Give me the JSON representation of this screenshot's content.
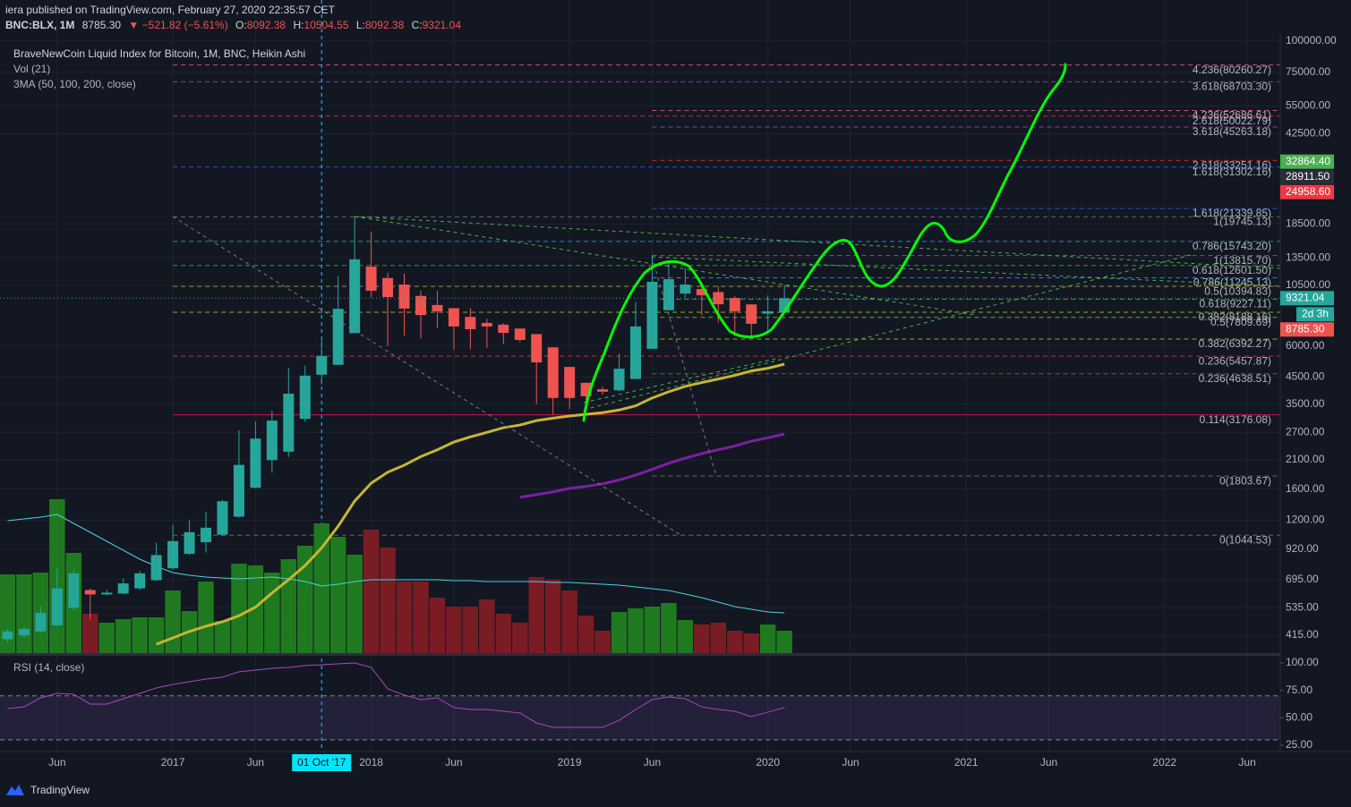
{
  "header": {
    "publisher": "iera published on TradingView.com, February 27, 2020 22:35:57 CET",
    "symbol": "BNC:BLX, 1M",
    "last": "8785.30",
    "change": "▼ −521.82 (−5.61%)",
    "ohlc": [
      {
        "label": "O:",
        "value": "8092.38"
      },
      {
        "label": "H:",
        "value": "10504.55"
      },
      {
        "label": "L:",
        "value": "8092.38"
      },
      {
        "label": "C:",
        "value": "9321.04"
      }
    ]
  },
  "legend": [
    "BraveNewCoin Liquid Index for Bitcoin, 1M, BNC, Heikin Ashi",
    "Vol (21)",
    "3MA (50, 100, 200, close)"
  ],
  "brand": "TradingView",
  "chart_data": {
    "type": "candlestick",
    "log_scale": true,
    "grid": true,
    "up_color": "#26a69a",
    "down_color": "#ef5350",
    "x": [
      "2016-03",
      "2016-04",
      "2016-05",
      "2016-06",
      "2016-07",
      "2016-08",
      "2016-09",
      "2016-10",
      "2016-11",
      "2016-12",
      "2017-01",
      "2017-02",
      "2017-03",
      "2017-04",
      "2017-05",
      "2017-06",
      "2017-07",
      "2017-08",
      "2017-09",
      "2017-10",
      "2017-11",
      "2017-12",
      "2018-01",
      "2018-02",
      "2018-03",
      "2018-04",
      "2018-05",
      "2018-06",
      "2018-07",
      "2018-08",
      "2018-09",
      "2018-10",
      "2018-11",
      "2018-12",
      "2019-01",
      "2019-02",
      "2019-03",
      "2019-04",
      "2019-05",
      "2019-06",
      "2019-07",
      "2019-08",
      "2019-09",
      "2019-10",
      "2019-11",
      "2019-12",
      "2020-01",
      "2020-02"
    ],
    "open": [
      400,
      415,
      430,
      455,
      535,
      630,
      605,
      610,
      640,
      690,
      770,
      880,
      980,
      1050,
      1240,
      1620,
      2090,
      2260,
      3060,
      4600,
      5040,
      6750,
      12470,
      11230,
      10570,
      9520,
      8750,
      8500,
      7840,
      7420,
      7300,
      7040,
      6690,
      5920,
      4940,
      4270,
      4020,
      3980,
      4420,
      5840,
      8340,
      9720,
      10140,
      9860,
      9340,
      8800,
      8080,
      8180
    ],
    "high": [
      440,
      450,
      540,
      770,
      760,
      640,
      630,
      700,
      750,
      975,
      1150,
      1200,
      1300,
      1450,
      2750,
      2980,
      3300,
      4900,
      5000,
      6400,
      11400,
      19745.13,
      17200,
      11800,
      11700,
      9990,
      9990,
      8500,
      8500,
      7700,
      7400,
      7040,
      6690,
      5920,
      4940,
      4270,
      4120,
      5600,
      9000,
      13880,
      13150,
      12300,
      10800,
      10400,
      9500,
      8800,
      9570,
      10504.55
    ],
    "low": [
      390,
      405,
      425,
      450,
      520,
      480,
      600,
      605,
      630,
      685,
      760,
      870,
      890,
      1040,
      1230,
      1610,
      1860,
      2150,
      2970,
      4200,
      5040,
      6750,
      9400,
      6000,
      6600,
      6430,
      7060,
      5780,
      5820,
      5880,
      6100,
      6200,
      3500,
      3180,
      3350,
      3390,
      3830,
      3950,
      4420,
      5840,
      8340,
      9350,
      7960,
      7440,
      6560,
      6440,
      6870,
      8092.38
    ],
    "close": [
      430,
      440,
      510,
      640,
      735,
      605,
      615,
      670,
      735,
      870,
      990,
      1075,
      1120,
      1430,
      2000,
      2550,
      3010,
      3860,
      4560,
      5470,
      8450,
      13335,
      9980,
      9420,
      8470,
      7980,
      8260,
      7180,
      7000,
      7180,
      6770,
      6340,
      5150,
      3710,
      3710,
      3770,
      3930,
      4860,
      7180,
      10840,
      11110,
      10570,
      9570,
      8810,
      8260,
      7360,
      8260,
      9321.04
    ],
    "ylim": [
      352,
      106800
    ],
    "yticks": [
      {
        "value": 100000,
        "label": "100000.00"
      },
      {
        "value": 75000,
        "label": "75000.00"
      },
      {
        "value": 55000,
        "label": "55000.00"
      },
      {
        "value": 42500,
        "label": "42500.00"
      },
      {
        "value": 18500,
        "label": "18500.00"
      },
      {
        "value": 13500,
        "label": "13500.00"
      },
      {
        "value": 10500,
        "label": "10500.00"
      },
      {
        "value": 6000,
        "label": "6000.00"
      },
      {
        "value": 4500,
        "label": "4500.00"
      },
      {
        "value": 3500,
        "label": "3500.00"
      },
      {
        "value": 2700,
        "label": "2700.00"
      },
      {
        "value": 2100,
        "label": "2100.00"
      },
      {
        "value": 1600,
        "label": "1600.00"
      },
      {
        "value": 1200,
        "label": "1200.00"
      },
      {
        "value": 920,
        "label": "920.00"
      },
      {
        "value": 695,
        "label": "695.00"
      },
      {
        "value": 535,
        "label": "535.00"
      },
      {
        "value": 415,
        "label": "415.00"
      }
    ],
    "xlim": [
      "2016-02",
      "2022-08"
    ],
    "xticks": [
      {
        "value": "2016-06",
        "label": "Jun"
      },
      {
        "value": "2017-01",
        "label": "2017"
      },
      {
        "value": "2017-06",
        "label": "Jun"
      },
      {
        "value": "2018-01",
        "label": "2018"
      },
      {
        "value": "2018-06",
        "label": "Jun"
      },
      {
        "value": "2019-01",
        "label": "2019"
      },
      {
        "value": "2019-06",
        "label": "Jun"
      },
      {
        "value": "2020-01",
        "label": "2020"
      },
      {
        "value": "2020-06",
        "label": "Jun"
      },
      {
        "value": "2021-01",
        "label": "2021"
      },
      {
        "value": "2021-06",
        "label": "Jun"
      },
      {
        "value": "2022-01",
        "label": "2022"
      },
      {
        "value": "2022-06",
        "label": "Jun"
      }
    ],
    "crosshair": {
      "value": "2017-10",
      "label": "01 Oct '17",
      "color": "#00e5ff"
    },
    "moving_averages": [
      {
        "color": "#c5b632",
        "values": [
          null,
          null,
          null,
          null,
          null,
          null,
          null,
          null,
          null,
          382,
          405,
          430,
          451,
          470,
          497,
          538,
          613,
          693,
          790,
          930,
          1136,
          1432,
          1690,
          1870,
          1995,
          2160,
          2300,
          2470,
          2590,
          2700,
          2820,
          2890,
          3010,
          3080,
          3140,
          3190,
          3240,
          3320,
          3450,
          3710,
          3930,
          4130,
          4280,
          4420,
          4570,
          4760,
          4880,
          5070
        ]
      },
      {
        "color": "#7b1fa2",
        "values": [
          null,
          null,
          null,
          null,
          null,
          null,
          null,
          null,
          null,
          null,
          null,
          null,
          null,
          null,
          null,
          null,
          null,
          null,
          null,
          null,
          null,
          null,
          null,
          null,
          null,
          null,
          null,
          null,
          null,
          null,
          null,
          1483,
          1520,
          1560,
          1610,
          1640,
          1680,
          1740,
          1820,
          1920,
          2030,
          2130,
          2220,
          2300,
          2380,
          2490,
          2570,
          2660
        ]
      }
    ],
    "volume": {
      "values": [
        88,
        88,
        90,
        172,
        112,
        44,
        34,
        38,
        40,
        40,
        70,
        47,
        80,
        36,
        100,
        98,
        90,
        105,
        120,
        145,
        130,
        110,
        138,
        118,
        80,
        80,
        62,
        52,
        52,
        60,
        44,
        34,
        85,
        82,
        70,
        42,
        25,
        46,
        50,
        52,
        56,
        37,
        32,
        34,
        25,
        22,
        32,
        25
      ],
      "ylim": [
        0,
        200
      ],
      "up_color": "#1f7a1f",
      "down_color": "#7a1c24",
      "ma": [
        148,
        150,
        152,
        155,
        145,
        135,
        125,
        115,
        105,
        97,
        90,
        87,
        85,
        84,
        83,
        84,
        85,
        83,
        80,
        75,
        77,
        80,
        82,
        82,
        82,
        82,
        82,
        81,
        81,
        80,
        80,
        80,
        80,
        79,
        79,
        78,
        77,
        76,
        74,
        72,
        70,
        66,
        62,
        57,
        52,
        49,
        46,
        45
      ],
      "ma_color": "#4dd0e1"
    },
    "fib_levels": [
      {
        "value": 80260.27,
        "label": "4.236(80260.27)",
        "color": "#f06292",
        "from": "2017-01"
      },
      {
        "value": 68703.3,
        "label": "3.618(68703.30)",
        "color": "#ab47bc",
        "from": "2017-01"
      },
      {
        "value": 52686.61,
        "label": "4.236(52686.61)",
        "color": "#f06292",
        "from": "2019-06"
      },
      {
        "value": 50022.79,
        "label": "2.618(50022.79)",
        "color": "#f23645",
        "from": "2017-01"
      },
      {
        "value": 45263.18,
        "label": "3.618(45263.18)",
        "color": "#ab47bc",
        "from": "2019-06"
      },
      {
        "value": 33251.16,
        "label": "2.618(33251.16)",
        "color": "#f23645",
        "from": "2019-06"
      },
      {
        "value": 31302.16,
        "label": "1.618(31302.16)",
        "color": "#2962ff",
        "from": "2017-01"
      },
      {
        "value": 21339.85,
        "label": "1.618(21339.85)",
        "color": "#2962ff",
        "from": "2019-06"
      },
      {
        "value": 19745.13,
        "label": "1(19745.13)",
        "color": "#787b86",
        "from": "2017-01"
      },
      {
        "value": 15743.2,
        "label": "0.786(15743.20)",
        "color": "#3d9fd6",
        "from": "2017-01"
      },
      {
        "value": 13815.7,
        "label": "1(13815.70)",
        "color": "#787b86",
        "from": "2019-06"
      },
      {
        "value": 12601.5,
        "label": "0.618(12601.50)",
        "color": "#4caf50",
        "from": "2017-01"
      },
      {
        "value": 11245.13,
        "label": "0.786(11245.13)",
        "color": "#3d9fd6",
        "from": "2019-06"
      },
      {
        "value": 10394.83,
        "label": "0.5(10394.83)",
        "color": "#afb42b",
        "from": "2017-01"
      },
      {
        "value": 9227.11,
        "label": "0.618(9227.11)",
        "color": "#4caf50",
        "from": "2019-06"
      },
      {
        "value": 8188.16,
        "label": "0.382(8188.16)",
        "color": "#c0ca33",
        "from": "2017-01"
      },
      {
        "value": 7809.69,
        "label": "0.5(7809.69)",
        "color": "#8bc34a",
        "from": "2019-06"
      },
      {
        "value": 6392.27,
        "label": "0.382(6392.27)",
        "color": "#c0ca33",
        "from": "2019-06"
      },
      {
        "value": 5457.87,
        "label": "0.236(5457.87)",
        "color": "#f23645",
        "from": "2017-01"
      },
      {
        "value": 4638.51,
        "label": "0.236(4638.51)",
        "color": "#f23645",
        "from": "2019-06"
      },
      {
        "value": 3176.08,
        "label": "0.114(3176.08)",
        "color": "#ff1744",
        "from": "2017-01"
      },
      {
        "value": 1803.67,
        "label": "0(1803.67)",
        "color": "#787b86",
        "from": "2019-06"
      },
      {
        "value": 1044.53,
        "label": "0(1044.53)",
        "color": "#787b86",
        "from": "2017-01"
      }
    ],
    "price_tags": [
      {
        "value": 32864.4,
        "label": "32864.40",
        "color": "#4caf50"
      },
      {
        "value": 28911.5,
        "label": "28911.50",
        "color": "#2a2e39"
      },
      {
        "value": 24958.6,
        "label": "24958.60",
        "color": "#f23645"
      },
      {
        "value": 9321.04,
        "label": "9321.04",
        "color": "#26a69a",
        "line": true
      },
      {
        "value": 8785.3,
        "label": "8785.30",
        "color": "#ef5350"
      }
    ],
    "countdown": "2d 3h",
    "rsi": {
      "title": "RSI (14, close)",
      "color": "#ab47bc",
      "ylim": [
        19.3,
        106.5
      ],
      "bands": [
        30,
        70
      ],
      "yticks": [
        {
          "value": 100,
          "label": "100.00"
        },
        {
          "value": 75,
          "label": "75.00"
        },
        {
          "value": 50,
          "label": "50.00"
        },
        {
          "value": 25,
          "label": "25.00"
        }
      ],
      "values": [
        58.4,
        60.0,
        68.2,
        72.3,
        71.5,
        62.5,
        62.5,
        67.4,
        72.3,
        77.2,
        80.4,
        82.9,
        85.3,
        87.0,
        91.9,
        93.5,
        95.1,
        95.9,
        97.6,
        98.4,
        99.2,
        100,
        95.9,
        76.4,
        70.7,
        66.6,
        68.2,
        59.3,
        57.6,
        57.6,
        56.0,
        54.4,
        45.4,
        41.3,
        41.3,
        41.3,
        41.3,
        47.8,
        57.6,
        66.6,
        69.0,
        67.4,
        60.0,
        57.6,
        56.0,
        51.1,
        55.2,
        59.3
      ]
    }
  }
}
